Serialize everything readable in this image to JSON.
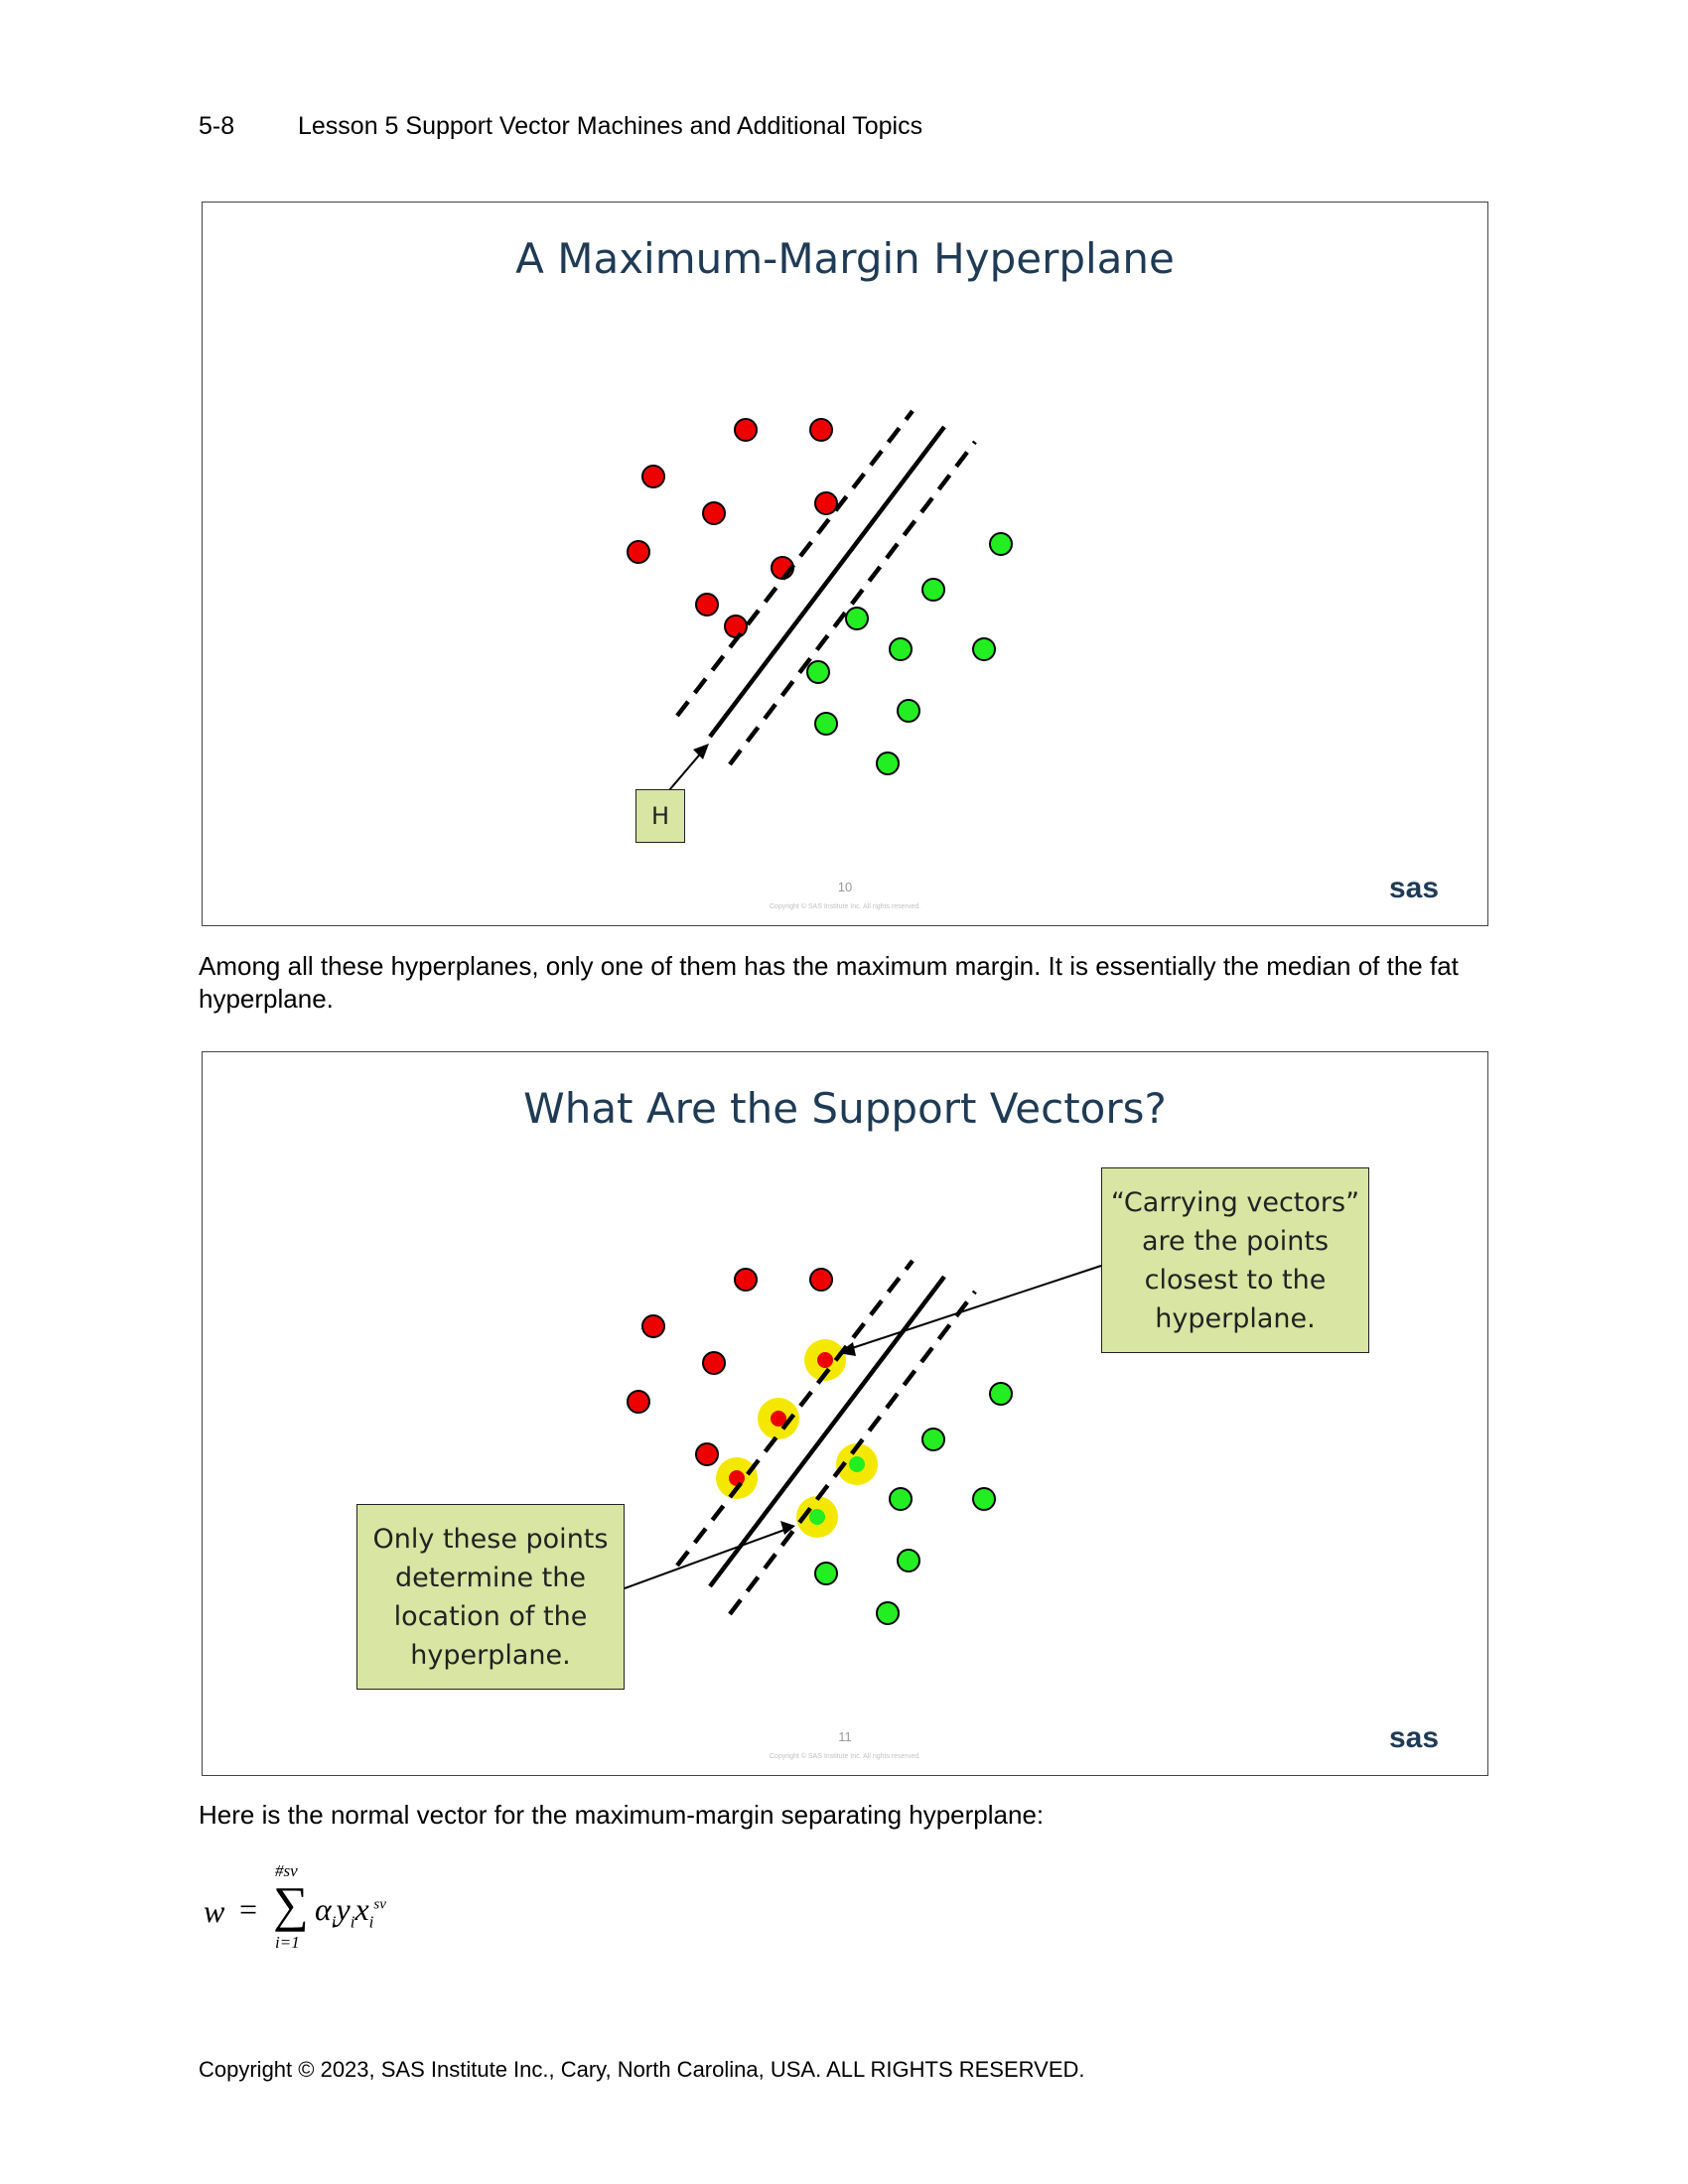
{
  "header": {
    "page_number": "5-8",
    "lesson_title": "Lesson 5  Support Vector Machines and Additional Topics"
  },
  "slide1": {
    "title": "A Maximum-Margin Hyperplane",
    "label": "H",
    "slide_number": "10",
    "copyright": "Copyright © SAS Institute Inc. All rights reserved.",
    "logo": "sas",
    "logo_icon": "sas-logo-icon"
  },
  "paragraph1": "Among all these hyperplanes, only one of them has the maximum margin. It is essentially the median of the fat hyperplane.",
  "slide2": {
    "title": "What Are the Support Vectors?",
    "callout_right": "“Carrying vectors”\nare the points\nclosest to the\nhyperplane.",
    "callout_left": "Only these points\ndetermine the\nlocation of the\nhyperplane.",
    "slide_number": "11",
    "copyright": "Copyright © SAS Institute Inc. All rights reserved.",
    "logo": "sas",
    "logo_icon": "sas-logo-icon"
  },
  "paragraph2": "Here is the normal vector for the maximum-margin separating hyperplane:",
  "formula": {
    "lhs": "w",
    "equals": "=",
    "sum_upper": "#sv",
    "sum_lower": "i=1",
    "alpha": "α",
    "y": "y",
    "x": "x",
    "sub_i": "i",
    "sup_sv": "sv"
  },
  "footer": {
    "copyright": "Copyright © 2023, SAS Institute Inc., Cary, North Carolina, USA. ALL RIGHTS RESERVED."
  },
  "colors": {
    "red_point": "#ee0000",
    "green_point": "#22ee22",
    "highlight": "#f5e800",
    "callout_fill": "#d8e5a3",
    "title_color": "#1f3b55"
  }
}
